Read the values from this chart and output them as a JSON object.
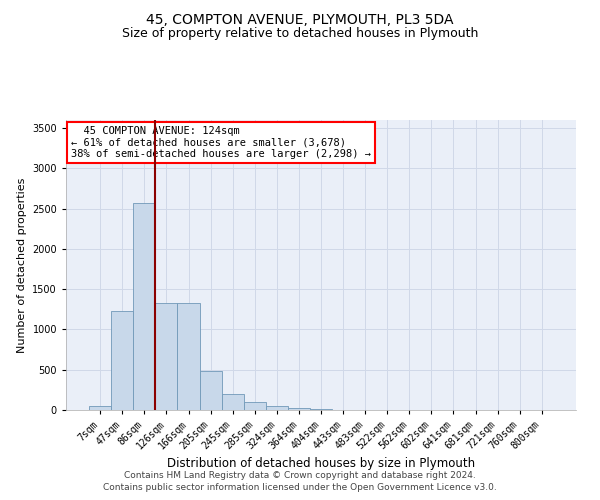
{
  "title": "45, COMPTON AVENUE, PLYMOUTH, PL3 5DA",
  "subtitle": "Size of property relative to detached houses in Plymouth",
  "xlabel": "Distribution of detached houses by size in Plymouth",
  "ylabel": "Number of detached properties",
  "bar_color": "#c8d8ea",
  "bar_edge_color": "#7098b8",
  "bar_heights": [
    55,
    1230,
    2570,
    1330,
    1330,
    490,
    195,
    105,
    50,
    25,
    10,
    5,
    3,
    2,
    1,
    1,
    0,
    0,
    0,
    0,
    0
  ],
  "bar_labels": [
    "7sqm",
    "47sqm",
    "86sqm",
    "126sqm",
    "166sqm",
    "205sqm",
    "245sqm",
    "285sqm",
    "324sqm",
    "364sqm",
    "404sqm",
    "443sqm",
    "483sqm",
    "522sqm",
    "562sqm",
    "602sqm",
    "641sqm",
    "681sqm",
    "721sqm",
    "760sqm",
    "800sqm"
  ],
  "ylim": [
    0,
    3600
  ],
  "yticks": [
    0,
    500,
    1000,
    1500,
    2000,
    2500,
    3000,
    3500
  ],
  "property_line_x": 2,
  "annotation_text": "  45 COMPTON AVENUE: 124sqm\n← 61% of detached houses are smaller (3,678)\n38% of semi-detached houses are larger (2,298) →",
  "footer_text": "Contains HM Land Registry data © Crown copyright and database right 2024.\nContains public sector information licensed under the Open Government Licence v3.0.",
  "grid_color": "#d0d8e8",
  "background_color": "#eaeff8",
  "title_fontsize": 10,
  "subtitle_fontsize": 9,
  "ylabel_fontsize": 8,
  "xlabel_fontsize": 8.5,
  "tick_fontsize": 7,
  "annot_fontsize": 7.5,
  "footer_fontsize": 6.5
}
